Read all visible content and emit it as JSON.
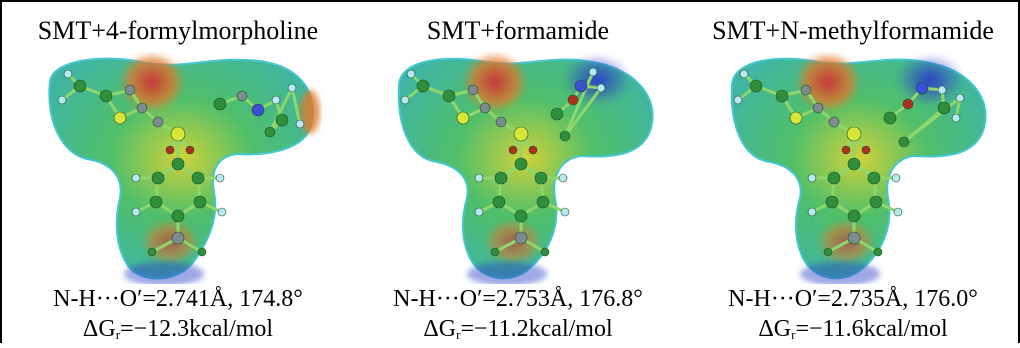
{
  "figure": {
    "panels": [
      {
        "title": "SMT+4-formylmorpholine",
        "bond": "N-H···O′=2.741Å, 174.8°",
        "energy_prefix": "ΔG",
        "energy_sub": "r",
        "energy_value": "=−12.3kcal/mol",
        "partner": "formylmorpholine"
      },
      {
        "title": "SMT+formamide",
        "bond": "N-H···O′=2.753Å, 176.8°",
        "energy_prefix": "ΔG",
        "energy_sub": "r",
        "energy_value": "=−11.2kcal/mol",
        "partner": "formamide"
      },
      {
        "title": "SMT+N-methylformamide",
        "bond": "N-H···O′=2.735Å, 176.0°",
        "energy_prefix": "ΔG",
        "energy_sub": "r",
        "energy_value": "=−11.6kcal/mol",
        "partner": "methylformamide"
      }
    ],
    "colors": {
      "surface_green": "#4fbf6a",
      "surface_teal": "#3fb4a6",
      "surface_cyan": "#46c6cf",
      "hot_red": "#c4303a",
      "hot_orange": "#e07a2a",
      "hot_yellow": "#cfd23a",
      "cold_blue": "#2b3fc8",
      "atom_carbon": "#2f8f3a",
      "atom_hydrogen": "#b6e8f2",
      "atom_nitrogen": "#3a4fd6",
      "atom_oxygen": "#b03020",
      "atom_sulfur": "#d8e63a",
      "atom_grey": "#7d8a90"
    }
  }
}
